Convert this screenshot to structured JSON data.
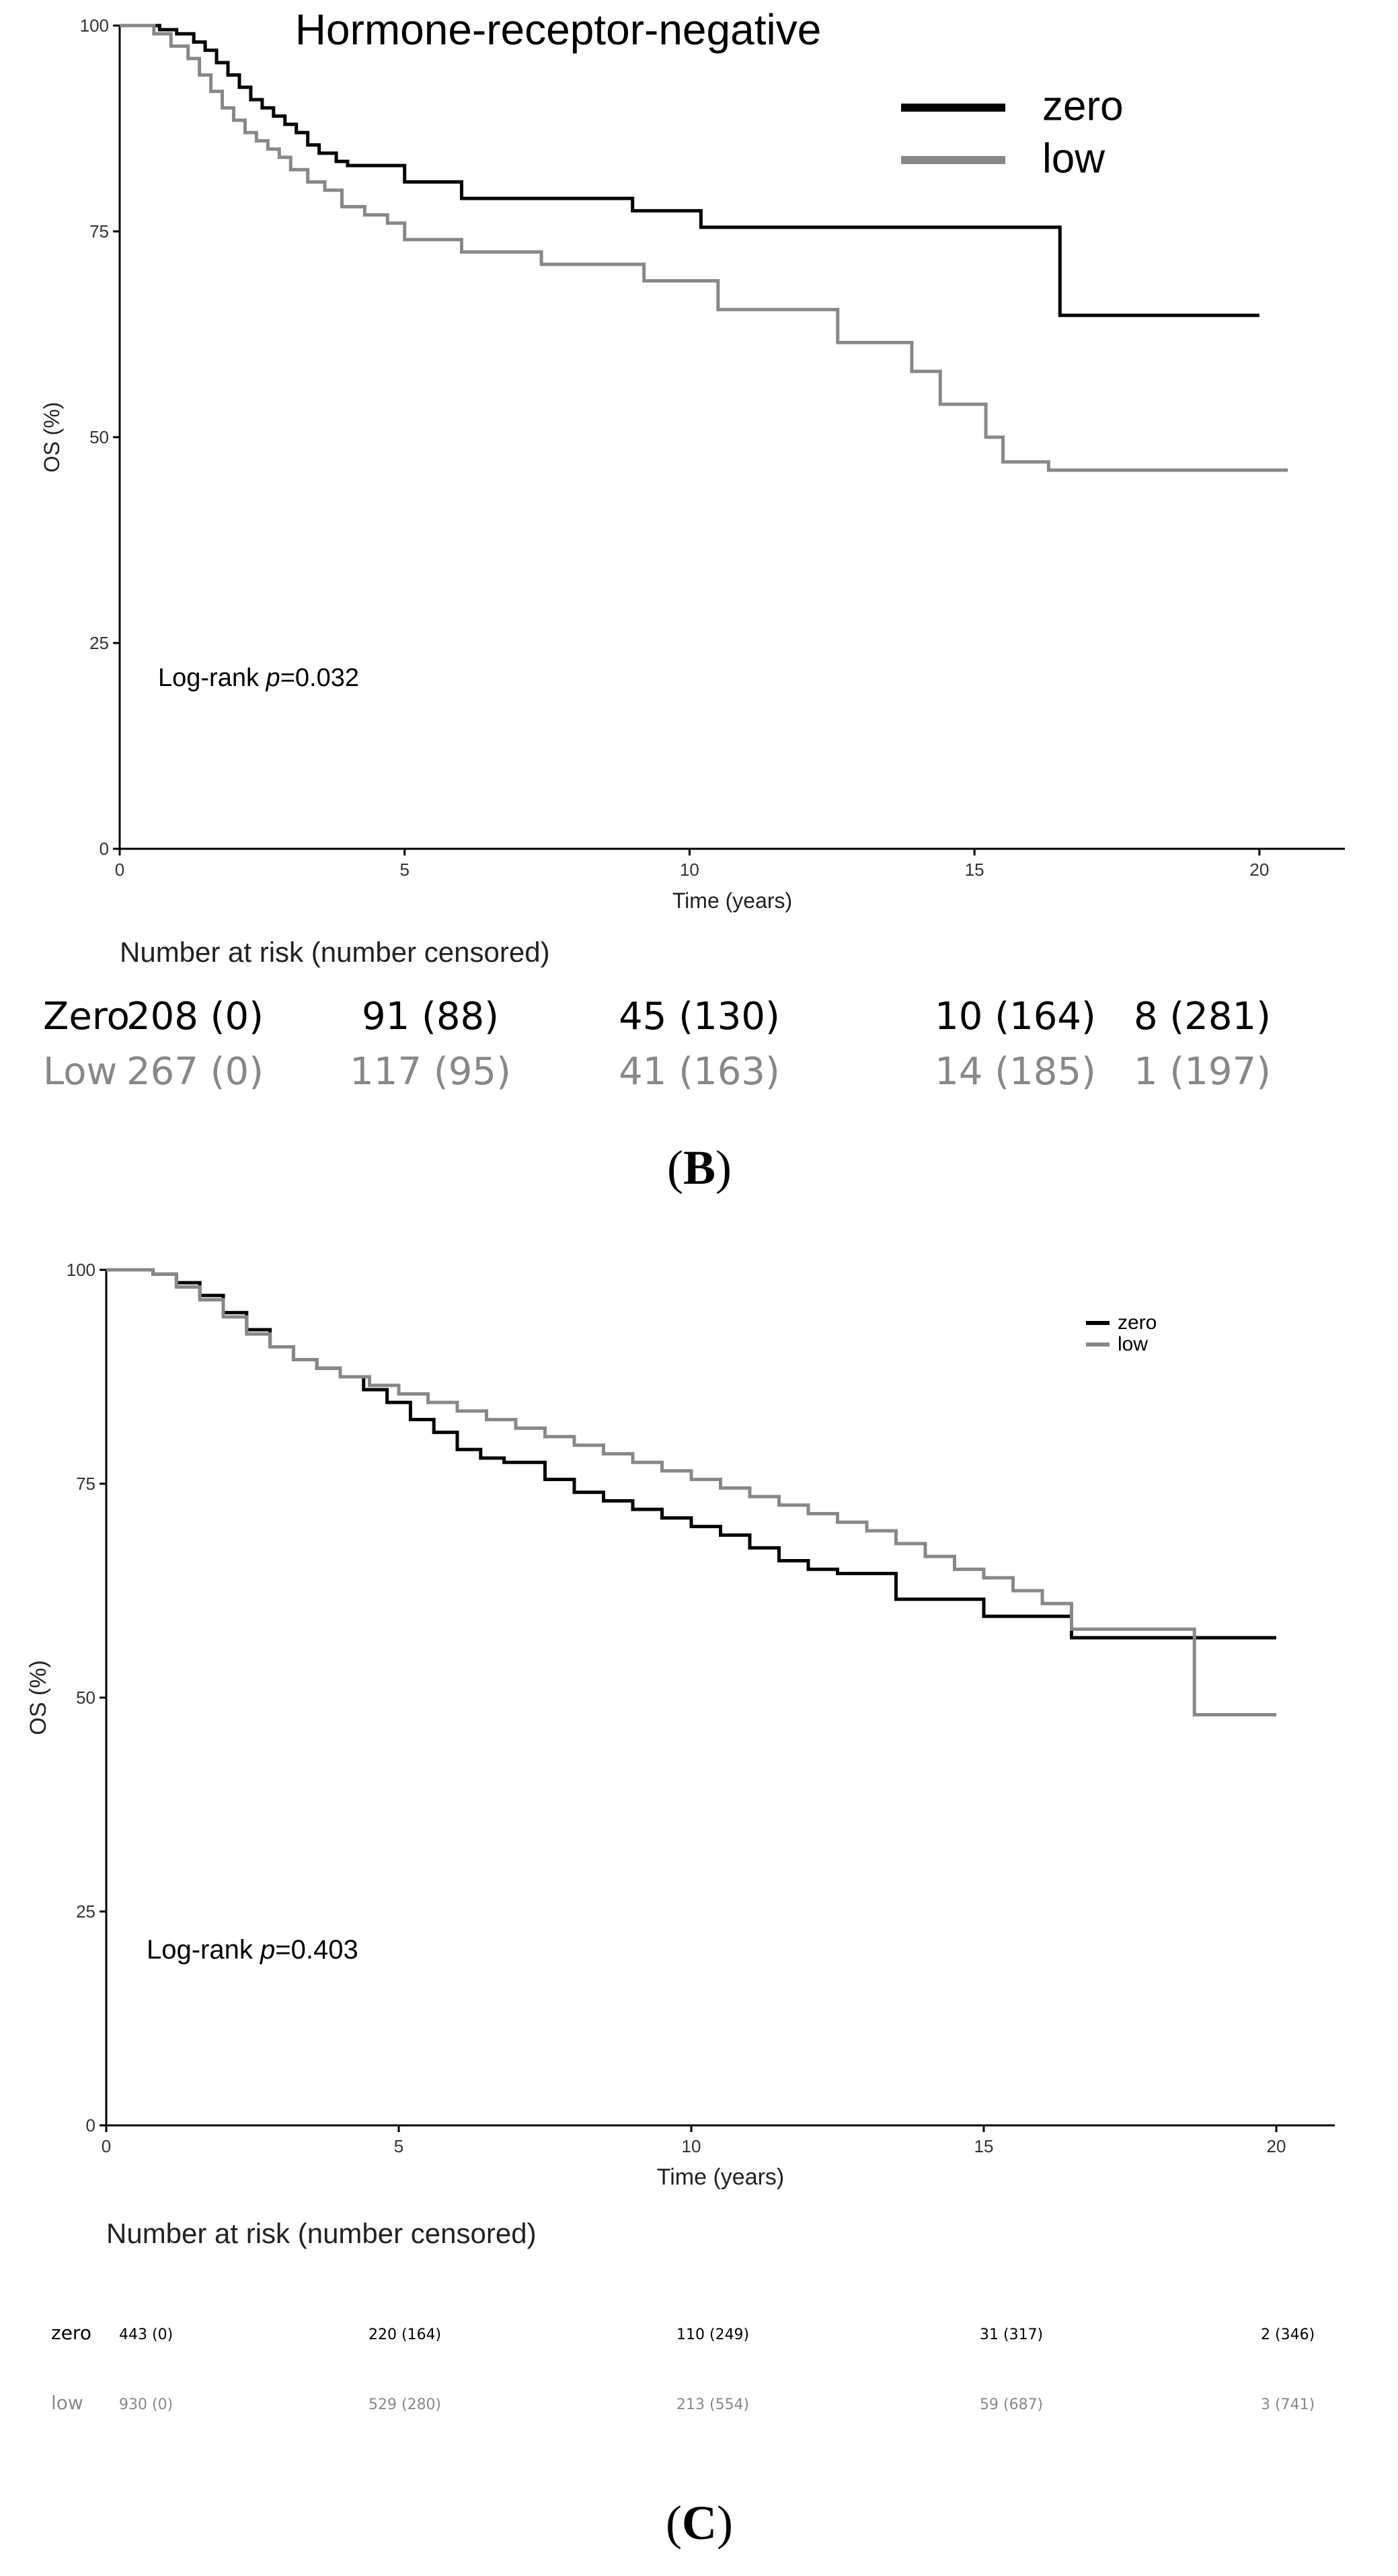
{
  "chart_data": [
    {
      "type": "line",
      "step": true,
      "title": "Hormone-receptor-negative",
      "xlabel": "Time (years)",
      "ylabel": "OS (%)",
      "xlim": [
        0,
        21.5
      ],
      "ylim": [
        0,
        100
      ],
      "xticks": [
        0,
        5,
        10,
        15,
        20
      ],
      "yticks": [
        0,
        25,
        50,
        75,
        100
      ],
      "legend_position": "top-right",
      "annotation": {
        "prefix": "Log-rank ",
        "italic": "p",
        "suffix": "=0.032"
      },
      "series": [
        {
          "name": "zero",
          "color": "#000000",
          "x": [
            0,
            0.7,
            1.0,
            1.3,
            1.5,
            1.7,
            1.9,
            2.1,
            2.3,
            2.5,
            2.7,
            2.9,
            3.1,
            3.3,
            3.5,
            3.8,
            4.0,
            5.0,
            6.0,
            9.0,
            10.2,
            16.5,
            20.0
          ],
          "y": [
            100,
            99.5,
            99,
            98,
            97,
            95.5,
            94,
            92.5,
            91,
            90,
            89,
            88,
            87,
            85.5,
            84.5,
            83.5,
            83,
            81,
            79,
            77.5,
            75.5,
            64.8,
            64.8
          ]
        },
        {
          "name": "low",
          "color": "#888888",
          "x": [
            0,
            0.6,
            0.9,
            1.2,
            1.4,
            1.6,
            1.8,
            2.0,
            2.2,
            2.4,
            2.6,
            2.8,
            3.0,
            3.3,
            3.6,
            3.9,
            4.3,
            4.7,
            5.0,
            6.0,
            7.4,
            9.2,
            10.5,
            12.6,
            13.9,
            14.4,
            15.2,
            15.5,
            16.3,
            20.5
          ],
          "y": [
            100,
            99,
            97.5,
            96,
            94,
            92,
            90,
            88.5,
            87,
            86,
            85,
            84,
            82.5,
            81,
            80,
            78,
            77,
            76,
            74,
            72.5,
            71,
            69,
            65.5,
            61.5,
            58,
            54,
            50,
            47,
            46,
            46
          ]
        }
      ],
      "risk_table": {
        "title": "Number at risk (number censored)",
        "rows": [
          {
            "group": "Zero",
            "color": "#000000",
            "values": [
              "208 (0)",
              "91 (88)",
              "45 (130)",
              "10 (164)",
              "8 (281)"
            ]
          },
          {
            "group": "Low",
            "color": "#888888",
            "values": [
              "267 (0)",
              "117 (95)",
              "41 (163)",
              "14 (185)",
              "1 (197)"
            ]
          }
        ]
      },
      "panel_label": {
        "open": "(",
        "letter": "B",
        "close": ")"
      }
    },
    {
      "type": "line",
      "step": true,
      "title": "",
      "xlabel": "Time (years)",
      "ylabel": "OS (%)",
      "xlim": [
        0,
        21
      ],
      "ylim": [
        0,
        100
      ],
      "xticks": [
        0,
        5,
        10,
        15,
        20
      ],
      "yticks": [
        0,
        25,
        50,
        75,
        100
      ],
      "legend_position": "top-right",
      "annotation": {
        "prefix": "Log-rank ",
        "italic": "p",
        "suffix": "=0.403"
      },
      "series": [
        {
          "name": "zero",
          "color": "#000000",
          "x": [
            0,
            0.8,
            1.2,
            1.6,
            2.0,
            2.4,
            2.8,
            3.2,
            3.6,
            4.0,
            4.4,
            4.8,
            5.2,
            5.6,
            6.0,
            6.4,
            6.8,
            7.5,
            8.0,
            8.5,
            9.0,
            9.5,
            10.0,
            10.5,
            11.0,
            11.5,
            12.0,
            12.5,
            13.5,
            15.0,
            16.5,
            20.0
          ],
          "y": [
            100,
            99.5,
            98.5,
            97,
            95,
            93,
            91,
            89.5,
            88.5,
            87.5,
            86,
            84.5,
            82.5,
            81,
            79,
            78,
            77.5,
            75.5,
            74,
            73,
            72,
            71,
            70,
            69,
            67.5,
            66,
            65,
            64.5,
            61.5,
            59.5,
            57,
            57
          ]
        },
        {
          "name": "low",
          "color": "#888888",
          "x": [
            0,
            0.8,
            1.2,
            1.6,
            2.0,
            2.4,
            2.8,
            3.2,
            3.6,
            4.0,
            4.5,
            5.0,
            5.5,
            6.0,
            6.5,
            7.0,
            7.5,
            8.0,
            8.5,
            9.0,
            9.5,
            10.0,
            10.5,
            11.0,
            11.5,
            12.0,
            12.5,
            13.0,
            13.5,
            14.0,
            14.5,
            15.0,
            15.5,
            16.0,
            16.5,
            18.6,
            20.0
          ],
          "y": [
            100,
            99.5,
            98,
            96.5,
            94.5,
            92.5,
            91,
            89.5,
            88.5,
            87.5,
            86.5,
            85.5,
            84.5,
            83.5,
            82.5,
            81.5,
            80.5,
            79.5,
            78.5,
            77.5,
            76.5,
            75.5,
            74.5,
            73.5,
            72.5,
            71.5,
            70.5,
            69.5,
            68,
            66.5,
            65,
            64,
            62.5,
            61,
            58,
            48,
            48
          ]
        }
      ],
      "risk_table": {
        "title": "Number at risk (number censored)",
        "rows": [
          {
            "group": "zero",
            "color": "#000000",
            "values": [
              "443 (0)",
              "220 (164)",
              "110 (249)",
              "31 (317)",
              "2 (346)"
            ]
          },
          {
            "group": "low",
            "color": "#888888",
            "values": [
              "930 (0)",
              "529 (280)",
              "213 (554)",
              "59 (687)",
              "3 (741)"
            ]
          }
        ]
      },
      "panel_label": {
        "open": "(",
        "letter": "C",
        "close": ")"
      }
    }
  ]
}
